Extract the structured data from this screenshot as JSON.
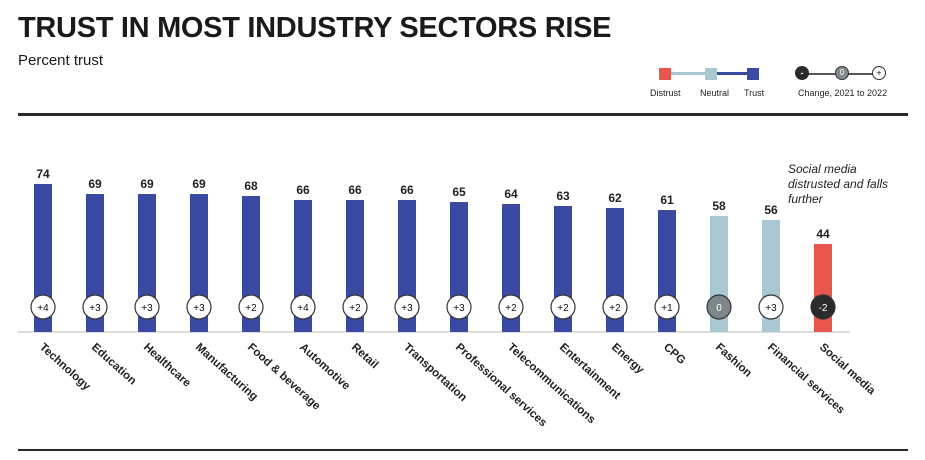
{
  "chart_data": {
    "type": "bar",
    "title": "TRUST IN MOST INDUSTRY SECTORS RISE",
    "subtitle": "Percent trust",
    "categories": [
      "Technology",
      "Education",
      "Healthcare",
      "Manufacturing",
      "Food & beverage",
      "Automotive",
      "Retail",
      "Transportation",
      "Professional services",
      "Telecommunications",
      "Entertainment",
      "Energy",
      "CPG",
      "Fashion",
      "Financial services",
      "Social media"
    ],
    "values": [
      74,
      69,
      69,
      69,
      68,
      66,
      66,
      66,
      65,
      64,
      63,
      62,
      61,
      58,
      56,
      44
    ],
    "change_labels": [
      "+4",
      "+3",
      "+3",
      "+3",
      "+2",
      "+4",
      "+2",
      "+3",
      "+3",
      "+2",
      "+2",
      "+2",
      "+1",
      "0",
      "+3",
      "-2"
    ],
    "status": [
      "trust",
      "trust",
      "trust",
      "trust",
      "trust",
      "trust",
      "trust",
      "trust",
      "trust",
      "trust",
      "trust",
      "trust",
      "trust",
      "neutral",
      "neutral",
      "distrust"
    ],
    "colors": {
      "trust": "#3a4aa3",
      "neutral": "#a9c8d2",
      "distrust": "#e8574e"
    },
    "legend": {
      "items": [
        "Distrust",
        "Neutral",
        "Trust"
      ],
      "change_label": "Change, 2021 to 2022",
      "change_symbols": [
        "-",
        "0",
        "+"
      ]
    },
    "annotation": "Social media distrusted and falls further"
  }
}
